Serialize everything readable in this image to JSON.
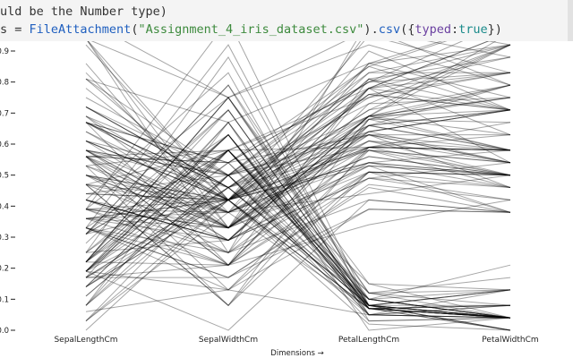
{
  "code": {
    "line1": "uld be the Number type)",
    "line2": {
      "prefix": "s = ",
      "func": "FileAttachment",
      "paren_open": "(",
      "file": "\"Assignment_4_iris_dataset.csv\"",
      "paren_close": ")",
      "dot": ".",
      "method": "csv",
      "args_open": "({",
      "key": "typed",
      "colon": ":",
      "value": "true",
      "args_close": "})"
    }
  },
  "chart_data": {
    "type": "line",
    "subtype": "parallel-coordinates",
    "dimensions": [
      "SepalLengthCm",
      "SepalWidthCm",
      "PetalLengthCm",
      "PetalWidthCm"
    ],
    "xlabel": "Dimensions →",
    "ylabel": "",
    "ylim": [
      0,
      0.9
    ],
    "yticks": [
      "0.0",
      "0.1",
      "0.2",
      "0.3",
      "0.4",
      "0.5",
      "0.6",
      "0.7",
      "0.8",
      "0.9"
    ],
    "line_color": "#000000",
    "line_opacity": 0.35,
    "series": [
      [
        0.22,
        0.63,
        0.07,
        0.04
      ],
      [
        0.17,
        0.42,
        0.07,
        0.04
      ],
      [
        0.11,
        0.5,
        0.05,
        0.04
      ],
      [
        0.08,
        0.46,
        0.08,
        0.04
      ],
      [
        0.19,
        0.67,
        0.07,
        0.04
      ],
      [
        0.31,
        0.79,
        0.12,
        0.13
      ],
      [
        0.08,
        0.58,
        0.07,
        0.08
      ],
      [
        0.19,
        0.58,
        0.08,
        0.04
      ],
      [
        0.03,
        0.38,
        0.07,
        0.04
      ],
      [
        0.17,
        0.46,
        0.08,
        0.0
      ],
      [
        0.31,
        0.71,
        0.08,
        0.04
      ],
      [
        0.14,
        0.58,
        0.1,
        0.04
      ],
      [
        0.14,
        0.42,
        0.07,
        0.0
      ],
      [
        0.0,
        0.42,
        0.02,
        0.0
      ],
      [
        0.42,
        0.83,
        0.03,
        0.04
      ],
      [
        0.39,
        1.0,
        0.08,
        0.13
      ],
      [
        0.31,
        0.79,
        0.05,
        0.13
      ],
      [
        0.22,
        0.63,
        0.07,
        0.08
      ],
      [
        0.39,
        0.75,
        0.12,
        0.08
      ],
      [
        0.22,
        0.75,
        0.08,
        0.08
      ],
      [
        0.31,
        0.58,
        0.12,
        0.04
      ],
      [
        0.22,
        0.71,
        0.08,
        0.13
      ],
      [
        0.08,
        0.67,
        0.0,
        0.04
      ],
      [
        0.22,
        0.54,
        0.12,
        0.17
      ],
      [
        0.14,
        0.58,
        0.15,
        0.04
      ],
      [
        0.19,
        0.42,
        0.1,
        0.04
      ],
      [
        0.19,
        0.58,
        0.1,
        0.13
      ],
      [
        0.25,
        0.63,
        0.08,
        0.04
      ],
      [
        0.25,
        0.58,
        0.07,
        0.04
      ],
      [
        0.11,
        0.5,
        0.1,
        0.04
      ],
      [
        0.14,
        0.46,
        0.1,
        0.04
      ],
      [
        0.31,
        0.58,
        0.08,
        0.13
      ],
      [
        0.25,
        0.88,
        0.08,
        0.0
      ],
      [
        0.33,
        0.92,
        0.07,
        0.04
      ],
      [
        0.17,
        0.46,
        0.08,
        0.0
      ],
      [
        0.19,
        0.5,
        0.03,
        0.04
      ],
      [
        0.33,
        0.63,
        0.05,
        0.04
      ],
      [
        0.17,
        0.67,
        0.07,
        0.0
      ],
      [
        0.03,
        0.42,
        0.05,
        0.04
      ],
      [
        0.22,
        0.58,
        0.08,
        0.04
      ],
      [
        0.19,
        0.63,
        0.05,
        0.08
      ],
      [
        0.06,
        0.13,
        0.05,
        0.08
      ],
      [
        0.03,
        0.5,
        0.05,
        0.04
      ],
      [
        0.19,
        0.63,
        0.1,
        0.21
      ],
      [
        0.22,
        0.75,
        0.15,
        0.13
      ],
      [
        0.14,
        0.42,
        0.07,
        0.08
      ],
      [
        0.22,
        0.75,
        0.1,
        0.04
      ],
      [
        0.08,
        0.5,
        0.07,
        0.04
      ],
      [
        0.28,
        0.71,
        0.08,
        0.04
      ],
      [
        0.19,
        0.54,
        0.07,
        0.04
      ],
      [
        0.75,
        0.5,
        0.63,
        0.54
      ],
      [
        0.58,
        0.5,
        0.59,
        0.58
      ],
      [
        0.72,
        0.46,
        0.66,
        0.58
      ],
      [
        0.33,
        0.13,
        0.51,
        0.5
      ],
      [
        0.61,
        0.33,
        0.61,
        0.58
      ],
      [
        0.39,
        0.33,
        0.59,
        0.5
      ],
      [
        0.56,
        0.54,
        0.63,
        0.63
      ],
      [
        0.17,
        0.17,
        0.39,
        0.38
      ],
      [
        0.64,
        0.38,
        0.61,
        0.5
      ],
      [
        0.25,
        0.29,
        0.49,
        0.54
      ],
      [
        0.19,
        0.0,
        0.42,
        0.38
      ],
      [
        0.44,
        0.42,
        0.54,
        0.58
      ],
      [
        0.47,
        0.08,
        0.51,
        0.38
      ],
      [
        0.5,
        0.38,
        0.63,
        0.54
      ],
      [
        0.36,
        0.38,
        0.44,
        0.5
      ],
      [
        0.67,
        0.46,
        0.58,
        0.54
      ],
      [
        0.36,
        0.42,
        0.59,
        0.58
      ],
      [
        0.42,
        0.29,
        0.53,
        0.38
      ],
      [
        0.53,
        0.08,
        0.59,
        0.58
      ],
      [
        0.36,
        0.21,
        0.49,
        0.42
      ],
      [
        0.44,
        0.5,
        0.64,
        0.71
      ],
      [
        0.5,
        0.33,
        0.51,
        0.5
      ],
      [
        0.56,
        0.21,
        0.66,
        0.58
      ],
      [
        0.5,
        0.33,
        0.63,
        0.46
      ],
      [
        0.58,
        0.38,
        0.56,
        0.5
      ],
      [
        0.64,
        0.42,
        0.58,
        0.54
      ],
      [
        0.69,
        0.33,
        0.64,
        0.54
      ],
      [
        0.67,
        0.42,
        0.68,
        0.67
      ],
      [
        0.47,
        0.38,
        0.59,
        0.58
      ],
      [
        0.39,
        0.25,
        0.42,
        0.38
      ],
      [
        0.33,
        0.17,
        0.47,
        0.42
      ],
      [
        0.33,
        0.17,
        0.46,
        0.38
      ],
      [
        0.42,
        0.29,
        0.49,
        0.46
      ],
      [
        0.47,
        0.29,
        0.69,
        0.63
      ],
      [
        0.31,
        0.42,
        0.59,
        0.58
      ],
      [
        0.47,
        0.58,
        0.59,
        0.63
      ],
      [
        0.67,
        0.46,
        0.63,
        0.58
      ],
      [
        0.56,
        0.13,
        0.58,
        0.5
      ],
      [
        0.36,
        0.42,
        0.53,
        0.5
      ],
      [
        0.33,
        0.21,
        0.51,
        0.5
      ],
      [
        0.33,
        0.25,
        0.58,
        0.46
      ],
      [
        0.5,
        0.42,
        0.61,
        0.54
      ],
      [
        0.42,
        0.25,
        0.51,
        0.46
      ],
      [
        0.19,
        0.13,
        0.39,
        0.38
      ],
      [
        0.36,
        0.29,
        0.54,
        0.5
      ],
      [
        0.39,
        0.42,
        0.54,
        0.46
      ],
      [
        0.39,
        0.38,
        0.54,
        0.5
      ],
      [
        0.53,
        0.38,
        0.56,
        0.5
      ],
      [
        0.22,
        0.21,
        0.34,
        0.42
      ],
      [
        0.39,
        0.33,
        0.53,
        0.5
      ],
      [
        0.56,
        0.54,
        0.85,
        1.0
      ],
      [
        0.42,
        0.29,
        0.69,
        0.75
      ],
      [
        0.78,
        0.42,
        0.83,
        0.83
      ],
      [
        0.56,
        0.38,
        0.78,
        0.71
      ],
      [
        0.61,
        0.42,
        0.81,
        0.88
      ],
      [
        0.92,
        0.42,
        0.95,
        0.83
      ],
      [
        0.17,
        0.21,
        0.59,
        0.67
      ],
      [
        0.83,
        0.38,
        0.9,
        0.71
      ],
      [
        0.67,
        0.21,
        0.81,
        0.71
      ],
      [
        0.81,
        0.67,
        0.86,
        1.0
      ],
      [
        0.61,
        0.5,
        0.69,
        0.79
      ],
      [
        0.58,
        0.29,
        0.73,
        0.75
      ],
      [
        0.69,
        0.42,
        0.76,
        0.83
      ],
      [
        0.39,
        0.21,
        0.68,
        0.79
      ],
      [
        0.42,
        0.33,
        0.69,
        0.96
      ],
      [
        0.58,
        0.5,
        0.73,
        0.92
      ],
      [
        0.61,
        0.42,
        0.76,
        0.71
      ],
      [
        0.94,
        0.75,
        0.97,
        0.88
      ],
      [
        0.94,
        0.25,
        1.0,
        0.92
      ],
      [
        0.47,
        0.08,
        0.68,
        0.58
      ],
      [
        0.72,
        0.5,
        0.8,
        0.92
      ],
      [
        0.36,
        0.33,
        0.66,
        0.79
      ],
      [
        0.94,
        0.33,
        0.97,
        0.79
      ],
      [
        0.56,
        0.29,
        0.66,
        0.71
      ],
      [
        0.67,
        0.54,
        0.8,
        0.83
      ],
      [
        0.81,
        0.5,
        0.85,
        0.71
      ],
      [
        0.53,
        0.33,
        0.64,
        0.71
      ],
      [
        0.5,
        0.42,
        0.66,
        0.71
      ],
      [
        0.58,
        0.33,
        0.78,
        0.83
      ],
      [
        0.81,
        0.42,
        0.81,
        0.63
      ],
      [
        0.86,
        0.33,
        0.86,
        0.75
      ],
      [
        1.0,
        0.75,
        0.92,
        0.79
      ],
      [
        0.58,
        0.33,
        0.78,
        0.88
      ],
      [
        0.56,
        0.33,
        0.69,
        0.58
      ],
      [
        0.5,
        0.25,
        0.78,
        0.54
      ],
      [
        0.94,
        0.42,
        0.86,
        0.92
      ],
      [
        0.56,
        0.58,
        0.78,
        0.96
      ],
      [
        0.58,
        0.46,
        0.76,
        0.71
      ],
      [
        0.47,
        0.42,
        0.64,
        0.71
      ],
      [
        0.72,
        0.46,
        0.75,
        0.83
      ],
      [
        0.67,
        0.46,
        0.78,
        0.96
      ],
      [
        0.72,
        0.46,
        0.69,
        0.92
      ],
      [
        0.42,
        0.29,
        0.69,
        0.75
      ],
      [
        0.69,
        0.5,
        0.83,
        0.92
      ],
      [
        0.67,
        0.54,
        0.8,
        1.0
      ],
      [
        0.67,
        0.42,
        0.71,
        0.92
      ],
      [
        0.56,
        0.21,
        0.68,
        0.75
      ],
      [
        0.61,
        0.42,
        0.71,
        0.79
      ],
      [
        0.53,
        0.58,
        0.75,
        0.92
      ],
      [
        0.44,
        0.42,
        0.69,
        0.71
      ]
    ]
  }
}
